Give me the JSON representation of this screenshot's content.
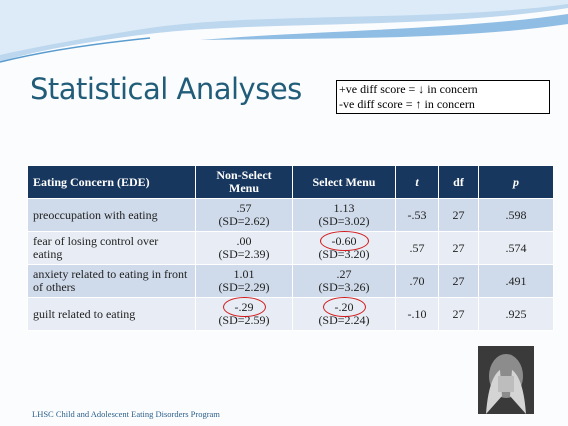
{
  "title": "Statistical Analyses",
  "note": [
    "+ve diff score = ↓ in concern",
    "-ve diff score = ↑ in concern"
  ],
  "table": {
    "header": [
      "Eating Concern (EDE)",
      "Non-Select Menu",
      "Select Menu",
      "t",
      "df",
      "p"
    ],
    "rows": [
      [
        "preoccupation with eating",
        [
          ".57",
          "(SD=2.62)"
        ],
        [
          "1.13",
          "(SD=3.02)"
        ],
        "-.53",
        "27",
        ".598"
      ],
      [
        "fear of losing control over eating",
        [
          ".00",
          "(SD=2.39)"
        ],
        [
          "-0.60",
          "(SD=3.20)"
        ],
        ".57",
        "27",
        ".574"
      ],
      [
        "anxiety related to eating in front of others",
        [
          "1.01",
          "(SD=2.29)"
        ],
        [
          ".27",
          "(SD=3.26)"
        ],
        ".70",
        "27",
        ".491"
      ],
      [
        "guilt related to eating",
        [
          "-.29",
          "(SD=2.59)"
        ],
        [
          "-.20",
          "(SD=2.24)"
        ],
        "-.10",
        "27",
        ".925"
      ]
    ]
  },
  "footer": "LHSC Child and Adolescent Eating Disorders Program"
}
